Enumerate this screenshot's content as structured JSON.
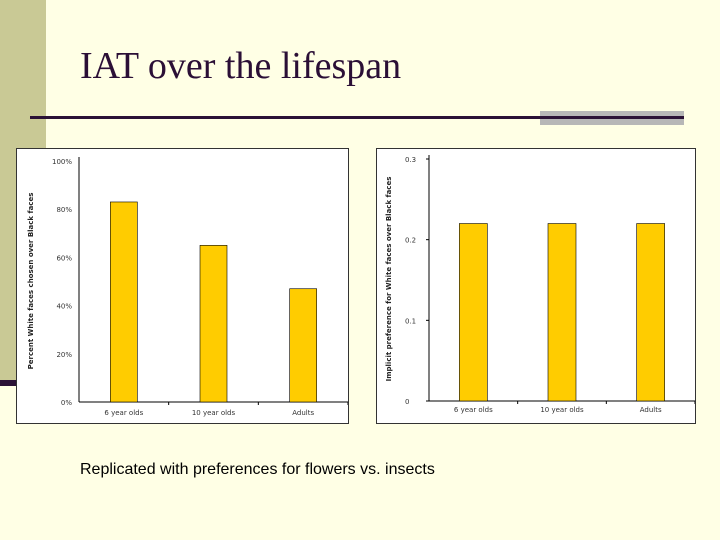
{
  "slide": {
    "title": "IAT over the lifespan",
    "caption": "Replicated with preferences for flowers vs. insects"
  },
  "theme": {
    "background": "#ffffe5",
    "band": "#c9c995",
    "rule": "#2b1236",
    "accent": "#b7b7b7",
    "bar": "#ffcc00",
    "bar_edge": "#000000"
  },
  "chart_data": [
    {
      "type": "bar",
      "title": "",
      "categories": [
        "6 year olds",
        "10 year olds",
        "Adults"
      ],
      "values": [
        83,
        65,
        47
      ],
      "xlabel": "",
      "ylabel": "Percent White faces chosen over Black faces",
      "ylim": [
        0,
        100
      ],
      "yticks": [
        0,
        20,
        40,
        60,
        80,
        100
      ],
      "ytick_labels": [
        "0%",
        "20%",
        "40%",
        "60%",
        "80%",
        "100%"
      ],
      "grid": false
    },
    {
      "type": "bar",
      "title": "",
      "categories": [
        "6 year olds",
        "10 year olds",
        "Adults"
      ],
      "values": [
        0.22,
        0.22,
        0.22
      ],
      "xlabel": "",
      "ylabel": "Implicit preference for White faces over Black faces",
      "ylim": [
        0,
        0.3
      ],
      "yticks": [
        0,
        0.1,
        0.2,
        0.3
      ],
      "ytick_labels": [
        "0",
        "0.1",
        "0.2",
        "0.3"
      ],
      "grid": false
    }
  ]
}
